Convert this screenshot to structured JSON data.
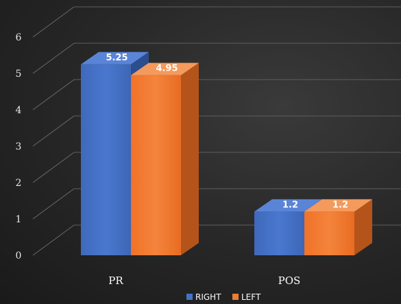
{
  "chart_data": {
    "type": "bar",
    "categories": [
      "PR",
      "POS"
    ],
    "series": [
      {
        "name": "RIGHT",
        "values": [
          5.25,
          1.2
        ],
        "color": "#4472c4"
      },
      {
        "name": "LEFT",
        "values": [
          4.95,
          1.2
        ],
        "color": "#ed7d31"
      }
    ],
    "ylim": [
      0,
      6
    ],
    "yticks": [
      "0",
      "1",
      "2",
      "3",
      "4",
      "5",
      "6"
    ],
    "data_labels": [
      [
        "5.25",
        "1.2"
      ],
      [
        "4.95",
        "1.2"
      ]
    ],
    "grid": true,
    "legend": "bottom-center",
    "style": "3d-clustered-column"
  }
}
